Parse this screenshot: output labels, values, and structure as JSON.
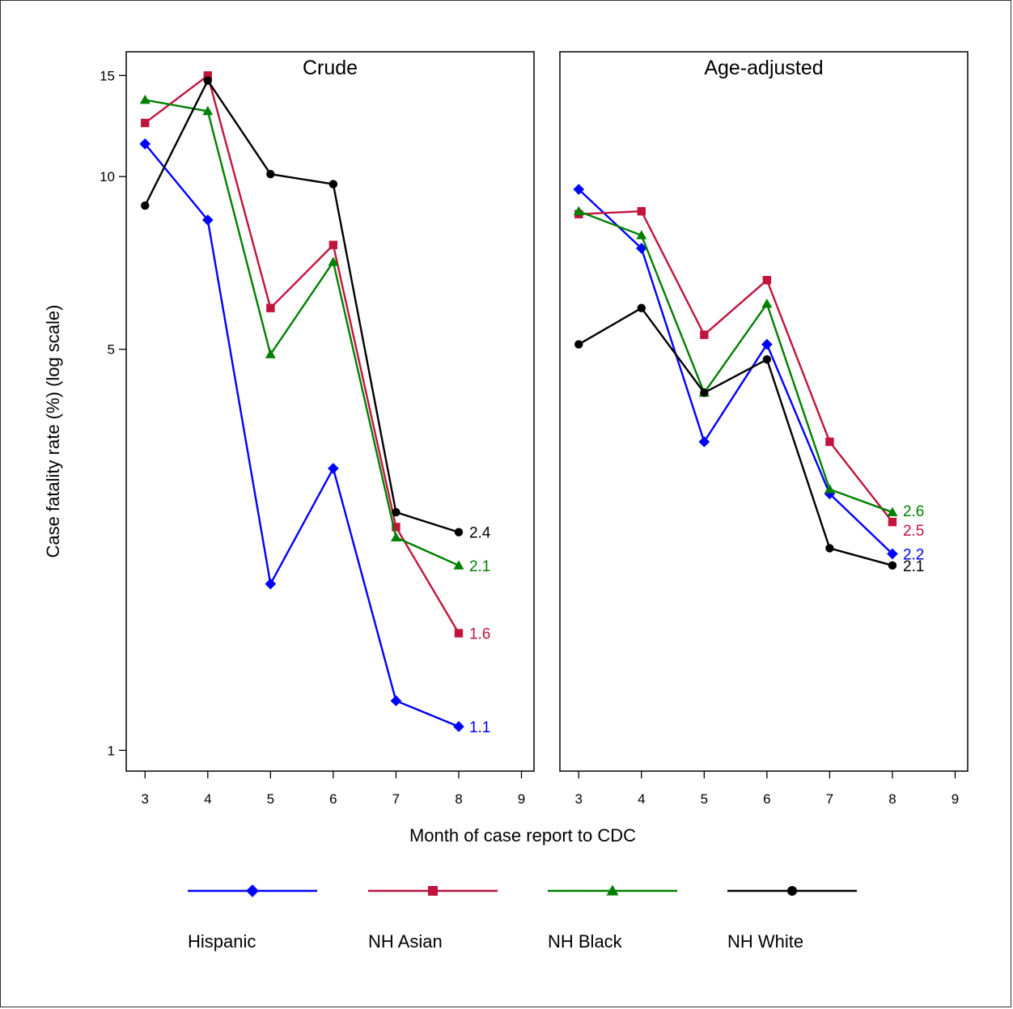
{
  "chart_data": {
    "type": "line",
    "y_scale": "log",
    "ylabel": "Case fatality rate (%) (log scale)",
    "xlabel": "Month of case report to CDC",
    "y_ticks": [
      1,
      5,
      10,
      15
    ],
    "x_ticks": [
      3,
      4,
      5,
      6,
      7,
      8,
      9
    ],
    "ylim": [
      0.92,
      16.5
    ],
    "xlim": [
      2.7,
      9.2
    ],
    "x": [
      3,
      4,
      5,
      6,
      7,
      8
    ],
    "legend_position": "bottom",
    "series": [
      {
        "name": "Hispanic",
        "color": "#0000ff",
        "marker": "diamond"
      },
      {
        "name": "NH Asian",
        "color": "#c0143c",
        "marker": "square"
      },
      {
        "name": "NH Black",
        "color": "#008000",
        "marker": "triangle"
      },
      {
        "name": "NH White",
        "color": "#000000",
        "marker": "circle"
      }
    ],
    "panels": [
      {
        "title": "Crude",
        "values": {
          "Hispanic": [
            11.4,
            8.4,
            1.95,
            3.1,
            1.22,
            1.1
          ],
          "NH Asian": [
            12.4,
            15.0,
            5.9,
            7.6,
            2.45,
            1.6
          ],
          "NH Black": [
            13.6,
            13.0,
            4.9,
            7.1,
            2.35,
            2.1
          ],
          "NH White": [
            8.9,
            14.7,
            10.1,
            9.7,
            2.6,
            2.4
          ]
        },
        "end_labels": {
          "Hispanic": "1.1",
          "NH Asian": "1.6",
          "NH Black": "2.1",
          "NH White": "2.4"
        }
      },
      {
        "title": "Age-adjusted",
        "values": {
          "Hispanic": [
            9.5,
            7.5,
            3.45,
            5.1,
            2.8,
            2.2
          ],
          "NH Asian": [
            8.6,
            8.7,
            5.3,
            6.6,
            3.45,
            2.5
          ],
          "NH Black": [
            8.7,
            7.9,
            4.2,
            6.0,
            2.85,
            2.6
          ],
          "NH White": [
            5.1,
            5.9,
            4.2,
            4.8,
            2.25,
            2.1
          ]
        },
        "end_labels": {
          "Hispanic": "2.2",
          "NH Asian": "2.5",
          "NH Black": "2.6",
          "NH White": "2.1"
        }
      }
    ]
  }
}
